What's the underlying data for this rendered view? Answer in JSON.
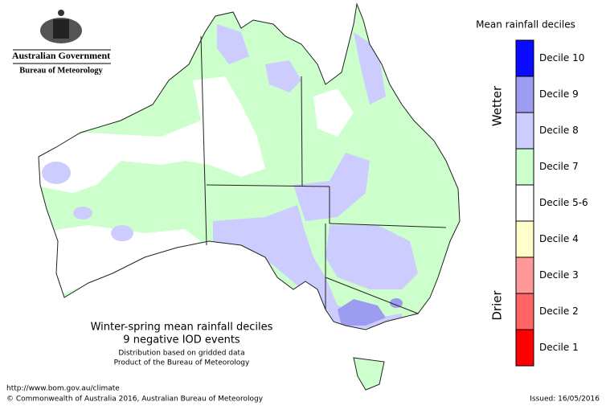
{
  "header": {
    "agency": "Australian Government",
    "bureau": "Bureau of Meteorology"
  },
  "legend": {
    "title": "Mean rainfall deciles",
    "wetter": "Wetter",
    "drier": "Drier",
    "items": [
      {
        "label": "Decile 10",
        "color": "#0a0aff"
      },
      {
        "label": "Decile 9",
        "color": "#9c9cf0"
      },
      {
        "label": "Decile 8",
        "color": "#ccccff"
      },
      {
        "label": "Decile 7",
        "color": "#ccffcc"
      },
      {
        "label": "Decile 5-6",
        "color": "#ffffff"
      },
      {
        "label": "Decile 4",
        "color": "#ffffcc"
      },
      {
        "label": "Decile 3",
        "color": "#ff9999"
      },
      {
        "label": "Decile 2",
        "color": "#ff6464"
      },
      {
        "label": "Decile 1",
        "color": "#ff0000"
      }
    ]
  },
  "caption": {
    "title": "Winter-spring mean rainfall deciles",
    "subtitle": "9 negative IOD events",
    "note1": "Distribution based on gridded data",
    "note2": "Product of the Bureau of Meteorology"
  },
  "footer": {
    "url": "http://www.bom.gov.au/climate",
    "copyright": "© Commonwealth of Australia 2016, Australian Bureau of Meteorology",
    "issued": "Issued: 16/05/2016"
  }
}
